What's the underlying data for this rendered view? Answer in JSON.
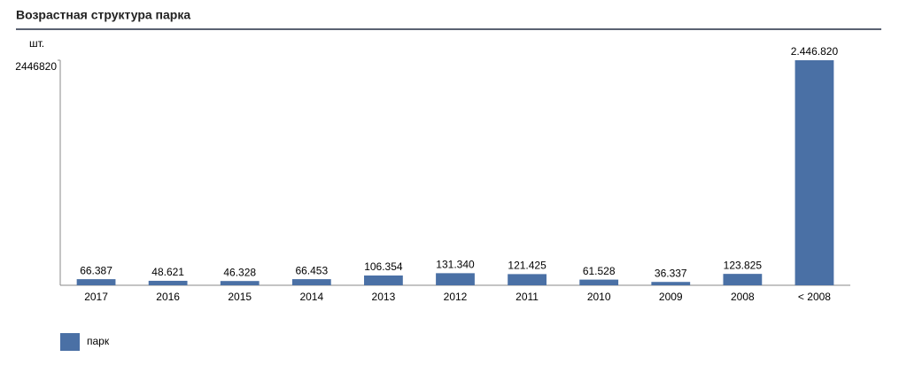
{
  "chart_data": {
    "type": "bar",
    "title": "Возрастная структура парка",
    "y_axis_label": "шт.",
    "categories": [
      "2017",
      "2016",
      "2015",
      "2014",
      "2013",
      "2012",
      "2011",
      "2010",
      "2009",
      "2008",
      "< 2008"
    ],
    "series": [
      {
        "name": "парк",
        "color": "#4a70a5",
        "values": [
          66387,
          48621,
          46328,
          66453,
          106354,
          131340,
          121425,
          61528,
          36337,
          123825,
          2446820
        ],
        "value_labels": [
          "66.387",
          "48.621",
          "46.328",
          "66.453",
          "106.354",
          "131.340",
          "121.425",
          "61.528",
          "36.337",
          "123.825",
          "2.446.820"
        ]
      }
    ],
    "ylim": [
      0,
      2446820
    ],
    "yticks": [
      2446820
    ],
    "grid": false
  }
}
